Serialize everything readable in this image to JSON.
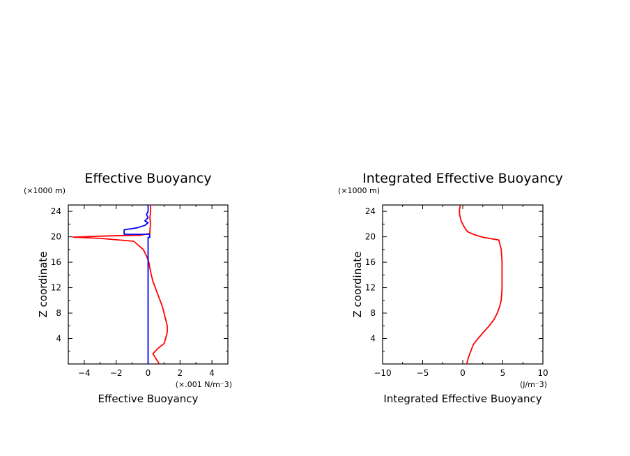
{
  "chart_data": [
    {
      "type": "line",
      "title": "Effective Buoyancy",
      "xlabel": "Effective Buoyancy",
      "ylabel": "Z coordinate",
      "x_unit": "(×.001 N/m⁻3)",
      "y_unit": "(×1000 m)",
      "xlim": [
        -5,
        5
      ],
      "ylim": [
        0,
        25
      ],
      "x_ticks": [
        -4,
        -2,
        0,
        2,
        4
      ],
      "x_tick_labels": [
        "−4",
        "−2",
        "0",
        "2",
        "4"
      ],
      "y_ticks": [
        4,
        8,
        12,
        16,
        20,
        24
      ],
      "y_tick_labels": [
        "4",
        "8",
        "12",
        "16",
        "20",
        "24"
      ],
      "series": [
        {
          "color": "#ff0000",
          "points": [
            [
              0.7,
              0
            ],
            [
              0.5,
              0.8
            ],
            [
              0.3,
              1.6
            ],
            [
              0.6,
              2.4
            ],
            [
              1.0,
              3.2
            ],
            [
              1.1,
              4
            ],
            [
              1.2,
              5
            ],
            [
              1.2,
              6
            ],
            [
              1.1,
              7
            ],
            [
              1.0,
              8
            ],
            [
              0.9,
              9
            ],
            [
              0.75,
              10
            ],
            [
              0.6,
              11
            ],
            [
              0.45,
              12
            ],
            [
              0.3,
              13
            ],
            [
              0.2,
              14
            ],
            [
              0.12,
              15
            ],
            [
              0.05,
              16
            ],
            [
              -0.1,
              17
            ],
            [
              -0.3,
              18
            ],
            [
              -0.9,
              19.3
            ],
            [
              -3,
              19.75
            ],
            [
              -4.7,
              19.95
            ],
            [
              -3,
              20.1
            ],
            [
              -0.5,
              20.25
            ],
            [
              0.1,
              20.5
            ],
            [
              0.12,
              21
            ],
            [
              0.15,
              22
            ],
            [
              0.12,
              23
            ],
            [
              0.15,
              24
            ],
            [
              0.15,
              25
            ]
          ]
        },
        {
          "color": "#0000ff",
          "points": [
            [
              0,
              0
            ],
            [
              0,
              19.9
            ],
            [
              0.1,
              19.9
            ],
            [
              0.1,
              20.0
            ],
            [
              0.1,
              20.4
            ],
            [
              -1.5,
              20.4
            ],
            [
              -1.5,
              21.1
            ],
            [
              -0.7,
              21.4
            ],
            [
              -0.2,
              21.8
            ],
            [
              0,
              22.2
            ],
            [
              -0.2,
              22.5
            ],
            [
              0,
              23.0
            ],
            [
              -0.1,
              23.5
            ],
            [
              0,
              24.0
            ],
            [
              0,
              25.0
            ]
          ]
        }
      ]
    },
    {
      "type": "line",
      "title": "Integrated Effective Buoyancy",
      "xlabel": "Integrated Effective Buoyancy",
      "ylabel": "Z coordinate",
      "x_unit": "(J/m⁻3)",
      "y_unit": "(×1000 m)",
      "xlim": [
        -10,
        10
      ],
      "ylim": [
        0,
        25
      ],
      "x_ticks": [
        -10,
        -5,
        0,
        5,
        10
      ],
      "x_tick_labels": [
        "−10",
        "−5",
        "0",
        "5",
        "10"
      ],
      "y_ticks": [
        4,
        8,
        12,
        16,
        20,
        24
      ],
      "y_tick_labels": [
        "4",
        "8",
        "12",
        "16",
        "20",
        "24"
      ],
      "series": [
        {
          "color": "#ff0000",
          "points": [
            [
              0.5,
              0
            ],
            [
              0.7,
              1
            ],
            [
              1.0,
              2
            ],
            [
              1.3,
              3
            ],
            [
              1.9,
              4
            ],
            [
              2.6,
              5
            ],
            [
              3.3,
              6
            ],
            [
              3.9,
              7
            ],
            [
              4.3,
              8
            ],
            [
              4.6,
              9
            ],
            [
              4.8,
              10
            ],
            [
              4.9,
              12
            ],
            [
              4.9,
              14
            ],
            [
              4.9,
              16
            ],
            [
              4.8,
              18
            ],
            [
              4.5,
              19.5
            ],
            [
              2.6,
              19.9
            ],
            [
              1.5,
              20.3
            ],
            [
              0.6,
              20.8
            ],
            [
              0.2,
              21.5
            ],
            [
              -0.2,
              22.5
            ],
            [
              -0.4,
              23.5
            ],
            [
              -0.4,
              24.3
            ],
            [
              -0.3,
              25
            ]
          ]
        }
      ]
    }
  ]
}
